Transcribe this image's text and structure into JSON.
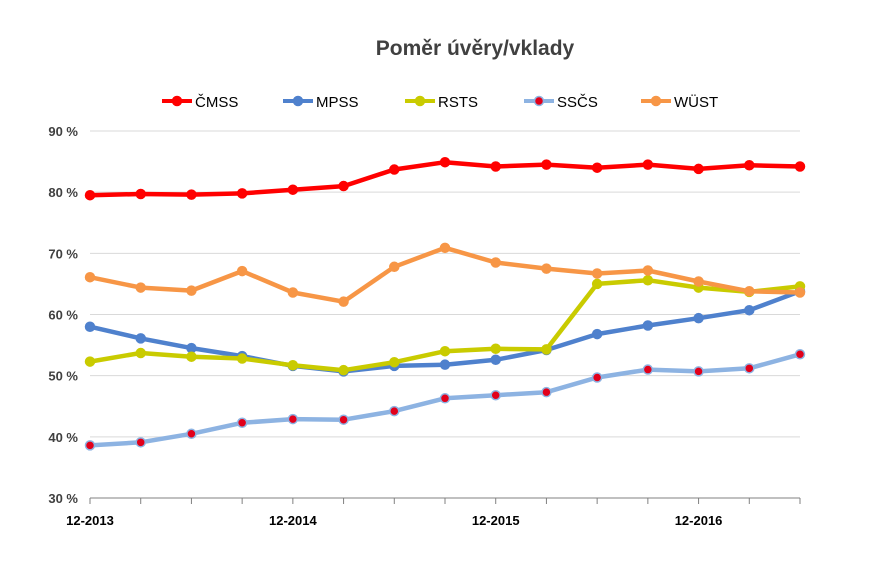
{
  "chart_data": {
    "type": "line",
    "title": "Poměr úvěry/vklady",
    "xlabel": "",
    "ylabel": "",
    "ylim": [
      30,
      90
    ],
    "y_ticks": [
      30,
      40,
      50,
      60,
      70,
      80,
      90
    ],
    "y_tick_labels": [
      "30 %",
      "40 %",
      "50 %",
      "60 %",
      "70 %",
      "80 %",
      "90 %"
    ],
    "y_unit": "%",
    "grid": true,
    "legend_position": "top",
    "x_points": 15,
    "x_tick_labels": [
      {
        "index": 0,
        "label": "12-2013"
      },
      {
        "index": 4,
        "label": "12-2014"
      },
      {
        "index": 8,
        "label": "12-2015"
      },
      {
        "index": 12,
        "label": "12-2016"
      }
    ],
    "series": [
      {
        "name": "ČMSS",
        "color": "#ff0000",
        "marker": "#ff0000",
        "values": [
          79.5,
          79.7,
          79.6,
          79.8,
          80.4,
          81.0,
          83.7,
          84.9,
          84.2,
          84.5,
          84.0,
          84.5,
          83.8,
          84.4,
          84.2
        ]
      },
      {
        "name": "MPSS",
        "color": "#4f81cd",
        "marker": "#4f81cd",
        "values": [
          58.0,
          56.1,
          54.5,
          53.2,
          51.6,
          50.7,
          51.6,
          51.8,
          52.6,
          54.2,
          56.8,
          58.2,
          59.4,
          60.7,
          63.8
        ]
      },
      {
        "name": "RSTS",
        "color": "#c9cb00",
        "marker": "#c9cb00",
        "values": [
          52.3,
          53.7,
          53.1,
          52.8,
          51.7,
          50.9,
          52.2,
          54.0,
          54.4,
          54.3,
          65.0,
          65.6,
          64.4,
          63.7,
          64.6
        ]
      },
      {
        "name": "SSČS",
        "color": "#8db3e2",
        "marker": "#e2001a",
        "values": [
          38.6,
          39.1,
          40.5,
          42.3,
          42.9,
          42.8,
          44.2,
          46.3,
          46.8,
          47.3,
          49.7,
          51.0,
          50.7,
          51.2,
          53.5
        ]
      },
      {
        "name": "WÜST",
        "color": "#f79646",
        "marker": "#f79646",
        "values": [
          66.1,
          64.4,
          63.9,
          67.1,
          63.6,
          62.1,
          67.8,
          70.9,
          68.5,
          67.5,
          66.7,
          67.2,
          65.4,
          63.8,
          63.6
        ]
      }
    ]
  }
}
